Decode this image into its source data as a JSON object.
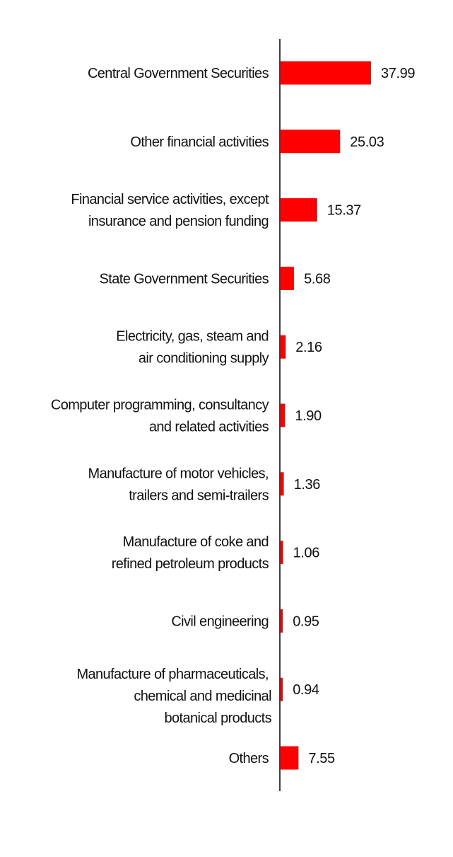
{
  "chart_data": {
    "type": "bar",
    "orientation": "horizontal",
    "title": "",
    "xlabel": "",
    "ylabel": "",
    "bar_color": "#ff0000",
    "axis_color": "#000000",
    "grid": false,
    "legend": "none",
    "categories": [
      "Central Government Securities",
      "Other financial activities",
      "Financial service activities, except insurance and pension funding",
      "State Government Securities",
      "Electricity, gas, steam and air conditioning supply",
      "Computer programming, consultancy and related activities",
      "Manufacture of motor vehicles, trailers and semi-trailers",
      "Manufacture of coke and refined petroleum products",
      "Civil engineering",
      "Manufacture of pharmaceuticals, chemical and medicinal botanical products",
      "Others"
    ],
    "category_lines": [
      [
        "Central Government Securities"
      ],
      [
        "Other financial activities"
      ],
      [
        "Financial service activities, except",
        "insurance and pension funding"
      ],
      [
        "State Government Securities"
      ],
      [
        "Electricity, gas, steam and",
        "air conditioning supply"
      ],
      [
        "Computer programming, consultancy",
        "and related activities"
      ],
      [
        "Manufacture of motor vehicles,",
        "trailers and semi-trailers"
      ],
      [
        "Manufacture of coke and",
        "refined petroleum products"
      ],
      [
        "Civil engineering"
      ],
      [
        "Manufacture of pharmaceuticals,",
        "chemical and medicinal",
        "botanical products"
      ],
      [
        "Others"
      ]
    ],
    "values": [
      37.99,
      25.03,
      15.37,
      5.68,
      2.16,
      1.9,
      1.36,
      1.06,
      0.95,
      0.94,
      7.55
    ],
    "value_labels": [
      "37.99",
      "25.03",
      "15.37",
      "5.68",
      "2.16",
      "1.90",
      "1.36",
      "1.06",
      "0.95",
      "0.94",
      "7.55"
    ],
    "xlim": [
      0,
      40
    ]
  }
}
